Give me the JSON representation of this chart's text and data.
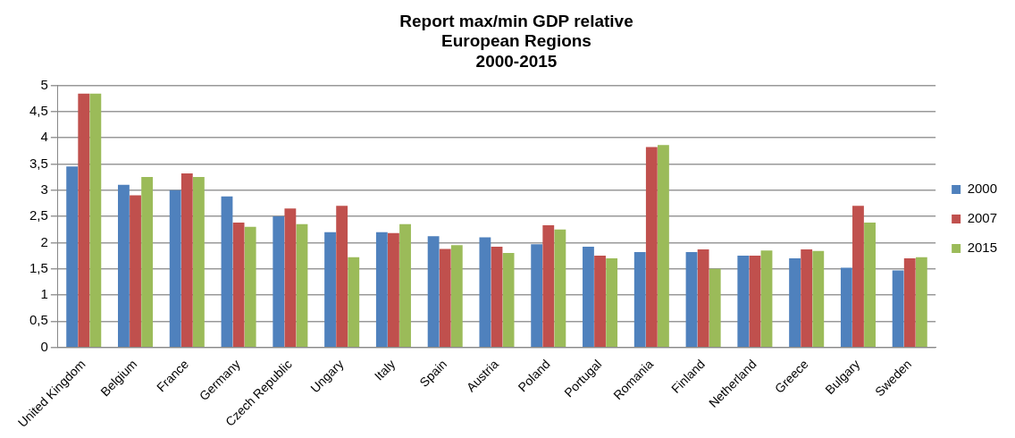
{
  "chart_data": {
    "type": "bar",
    "title": "Report max/min GDP relative\nEuropean Regions\n2000-2015",
    "categories": [
      "United Kingdom",
      "Belgium",
      "France",
      "Germany",
      "Czech Republic",
      "Ungary",
      "Italy",
      "Spain",
      "Austria",
      "Poland",
      "Portugal",
      "Romania",
      "Finland",
      "Netherland",
      "Greece",
      "Bulgary",
      "Sweden"
    ],
    "series": [
      {
        "name": "2000",
        "color": "#4f81bd",
        "values": [
          3.45,
          3.1,
          3.0,
          2.88,
          2.5,
          2.2,
          2.2,
          2.12,
          2.1,
          1.97,
          1.92,
          1.82,
          1.82,
          1.75,
          1.7,
          1.52,
          1.47
        ]
      },
      {
        "name": "2007",
        "color": "#c0504d",
        "values": [
          4.84,
          2.9,
          3.32,
          2.38,
          2.65,
          2.7,
          2.18,
          1.88,
          1.92,
          2.33,
          1.75,
          3.82,
          1.87,
          1.75,
          1.87,
          2.7,
          1.7
        ]
      },
      {
        "name": "2015",
        "color": "#9bbb59",
        "values": [
          4.84,
          3.25,
          3.25,
          2.3,
          2.35,
          1.72,
          2.35,
          1.95,
          1.8,
          2.25,
          1.7,
          3.86,
          1.5,
          1.85,
          1.84,
          2.38,
          1.72
        ]
      }
    ],
    "ylim": [
      0,
      5
    ],
    "yticks": [
      0,
      {
        "value": 0.5,
        "label": "0,5"
      },
      1,
      {
        "value": 1.5,
        "label": "1,5"
      },
      2,
      {
        "value": 2.5,
        "label": "2,5"
      },
      3,
      {
        "value": 3.5,
        "label": "3,5"
      },
      4,
      {
        "value": 4.5,
        "label": "4,5"
      },
      5
    ],
    "grid": "y",
    "legend": "right"
  }
}
